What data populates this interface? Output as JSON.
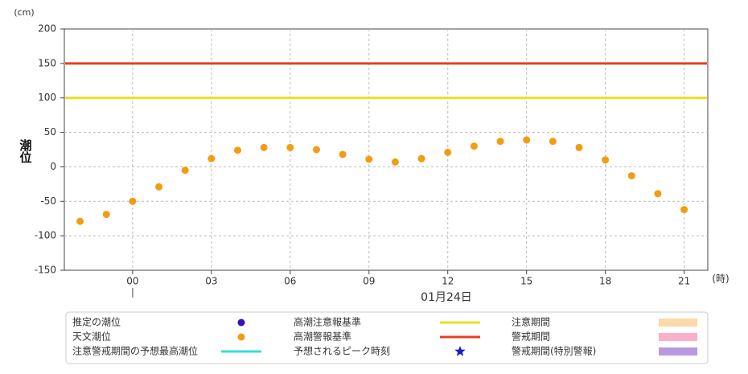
{
  "chart_data": {
    "type": "scatter",
    "y_unit": "(cm)",
    "x_unit": "(時)",
    "y_label": "潮位",
    "x_label": "01月24日",
    "ylim": [
      -150,
      200
    ],
    "yticks": [
      -150,
      -100,
      -50,
      0,
      50,
      100,
      150,
      200
    ],
    "xlim": [
      -2.6,
      21.9
    ],
    "xticks": [
      {
        "value": 0,
        "label": "00"
      },
      {
        "value": 3,
        "label": "03"
      },
      {
        "value": 6,
        "label": "06"
      },
      {
        "value": 9,
        "label": "09"
      },
      {
        "value": 12,
        "label": "12"
      },
      {
        "value": 15,
        "label": "15"
      },
      {
        "value": 18,
        "label": "18"
      },
      {
        "value": 21,
        "label": "21"
      }
    ],
    "grid": true,
    "series": [
      {
        "name": "推定の潮位",
        "color": "#3311bb",
        "symbol": "dot"
      },
      {
        "name": "天文潮位",
        "color": "#f39c12",
        "symbol": "dot",
        "x": [
          -2,
          -1,
          0,
          1,
          2,
          3,
          4,
          5,
          6,
          7,
          8,
          9,
          10,
          11,
          12,
          13,
          14,
          15,
          16,
          17,
          18,
          19,
          20,
          21
        ],
        "values": [
          -79,
          -69,
          -50,
          -29,
          -5,
          12,
          24,
          28,
          28,
          25,
          18,
          11,
          7,
          12,
          21,
          30,
          37,
          39,
          37,
          28,
          10,
          -13,
          -39,
          -62
        ]
      },
      {
        "name": "注意警戒期間の予想最高潮位",
        "color": "#33dddd",
        "symbol": "line"
      },
      {
        "name": "高潮注意報基準",
        "color": "#e8e020",
        "symbol": "line",
        "value": 100
      },
      {
        "name": "高潮警報基準",
        "color": "#e8401c",
        "symbol": "line",
        "value": 150
      },
      {
        "name": "予想されるピーク時刻",
        "color": "#1122cc",
        "symbol": "star"
      },
      {
        "name": "注意期間",
        "color": "#fcd9a8",
        "symbol": "box"
      },
      {
        "name": "警戒期間",
        "color": "#f9b0c8",
        "symbol": "box"
      },
      {
        "name": "警戒期間(特別警報)",
        "color": "#b79ae0",
        "symbol": "box"
      }
    ]
  }
}
